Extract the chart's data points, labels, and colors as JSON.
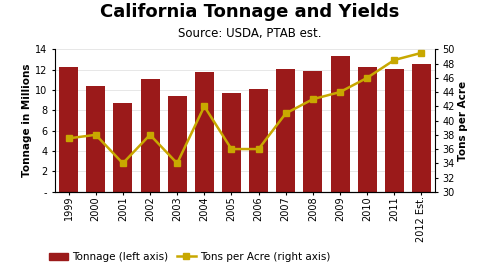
{
  "categories": [
    "1999",
    "2000",
    "2001",
    "2002",
    "2003",
    "2004",
    "2005",
    "2006",
    "2007",
    "2008",
    "2009",
    "2010",
    "2011",
    "2012 Est."
  ],
  "tonnage": [
    12.3,
    10.4,
    8.7,
    11.1,
    9.4,
    11.8,
    9.7,
    10.1,
    12.1,
    11.9,
    13.3,
    12.3,
    12.1,
    12.6
  ],
  "tons_per_acre": [
    37.5,
    38.0,
    34.0,
    38.0,
    34.0,
    42.0,
    36.0,
    36.0,
    41.0,
    43.0,
    44.0,
    46.0,
    48.5,
    49.5
  ],
  "bar_color": "#9B1A1A",
  "line_color": "#C8A800",
  "marker_color": "#C8A800",
  "title": "California Tonnage and Yields",
  "subtitle": "Source: USDA, PTAB est.",
  "ylabel_left": "Tonnage in Millions",
  "ylabel_right": "Tons per Acre",
  "ylim_left": [
    0,
    14
  ],
  "ylim_right": [
    30,
    50
  ],
  "yticks_left": [
    0,
    2,
    4,
    6,
    8,
    10,
    12,
    14
  ],
  "ytick_left_labels": [
    "-",
    "2",
    "4",
    "6",
    "8",
    "10",
    "12",
    "14"
  ],
  "yticks_right": [
    30,
    32,
    34,
    36,
    38,
    40,
    42,
    44,
    46,
    48,
    50
  ],
  "legend_bar_label": "Tonnage (left axis)",
  "legend_line_label": "Tons per Acre (right axis)",
  "bg_color": "#FFFFFF",
  "plot_bg_color": "#FFFFFF",
  "title_fontsize": 13,
  "subtitle_fontsize": 8.5,
  "axis_label_fontsize": 7.5,
  "tick_fontsize": 7,
  "legend_fontsize": 7.5
}
